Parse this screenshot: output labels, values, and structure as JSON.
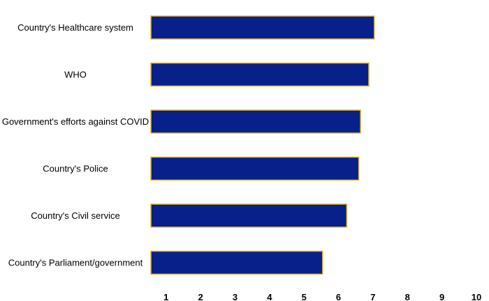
{
  "chart_data": {
    "type": "bar",
    "orientation": "horizontal",
    "categories": [
      "Country's Healthcare system",
      "WHO",
      "Government's efforts against COVID",
      "Country's Police",
      "Country's Civil service",
      "Country's Parliament/government"
    ],
    "values": [
      7.08,
      6.92,
      6.68,
      6.63,
      6.28,
      5.58
    ],
    "title": "",
    "xlabel": "",
    "ylabel": "",
    "xlim": [
      0.6,
      10
    ],
    "x_ticks": [
      "1",
      "2",
      "3",
      "4",
      "5",
      "6",
      "7",
      "8",
      "9",
      "10"
    ],
    "grid": false,
    "legend": "none",
    "colors": {
      "bar_fill": "#08208a",
      "bar_stroke": "#e8b830"
    }
  }
}
